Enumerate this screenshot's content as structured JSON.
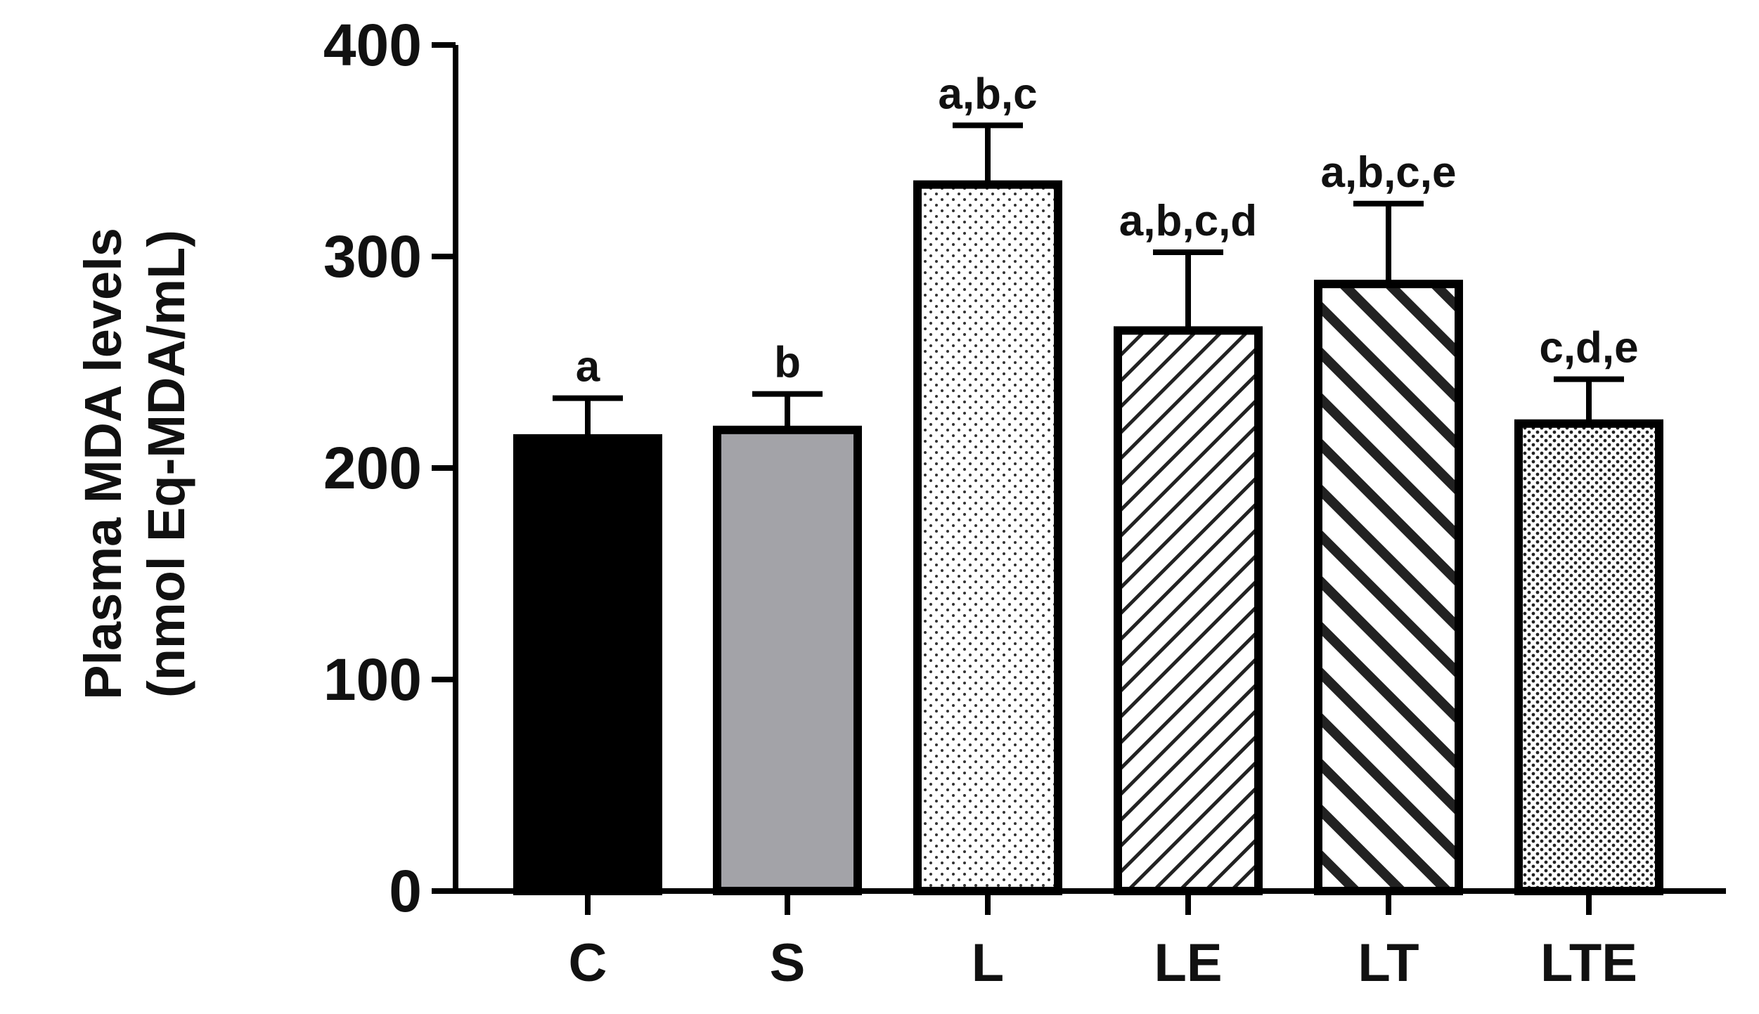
{
  "chart_data": {
    "type": "bar",
    "title": "",
    "xlabel": "",
    "ylabel": [
      "Plasma MDA levels",
      "(nmol Eq-MDA/mL)"
    ],
    "ylim": [
      0,
      400
    ],
    "yticks": [
      0,
      100,
      200,
      300,
      400
    ],
    "grid": false,
    "categories": [
      "C",
      "S",
      "L",
      "LE",
      "LT",
      "LTE"
    ],
    "values": [
      214,
      218,
      334,
      265,
      287,
      221
    ],
    "errors": [
      19,
      17,
      28,
      37,
      38,
      21
    ],
    "annotations": [
      "a",
      "b",
      "a,b,c",
      "a,b,c,d",
      "a,b,c,e",
      "c,d,e"
    ],
    "fills": [
      "solid-black",
      "solid-gray",
      "fine-dots",
      "thin-diagonal",
      "thick-diagonal",
      "dense-dots"
    ],
    "colors": {
      "black": "#000000",
      "gray": "#a3a3a8",
      "white": "#ffffff"
    }
  }
}
